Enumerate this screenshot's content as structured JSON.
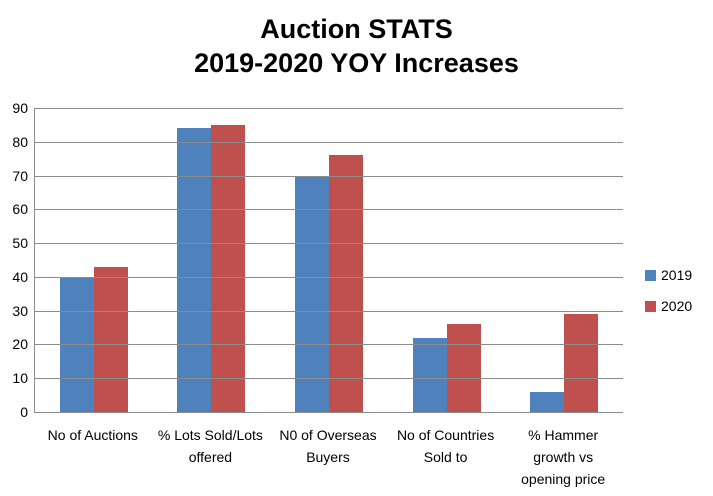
{
  "title": {
    "line1": "Auction STATS",
    "line2": "2019-2020 YOY Increases"
  },
  "chart_data": {
    "type": "bar",
    "title": "Auction STATS 2019-2020 YOY Increases",
    "categories": [
      "No of Auctions",
      "% Lots Sold/Lots offered",
      "N0 of Overseas Buyers",
      "No of Countries Sold to",
      "% Hammer growth vs opening price"
    ],
    "category_label_lines": [
      [
        "No of Auctions"
      ],
      [
        "% Lots Sold/Lots",
        "offered"
      ],
      [
        "N0 of Overseas",
        "Buyers"
      ],
      [
        "No of Countries",
        "Sold to"
      ],
      [
        "% Hammer",
        "growth vs",
        "opening price"
      ]
    ],
    "series": [
      {
        "name": "2019",
        "color": "#4F81BD",
        "values": [
          40,
          84,
          70,
          22,
          6
        ]
      },
      {
        "name": "2020",
        "color": "#C0504D",
        "values": [
          43,
          85,
          76,
          26,
          29
        ]
      }
    ],
    "xlabel": "",
    "ylabel": "",
    "ylim": [
      0,
      90
    ],
    "yticks": [
      0,
      10,
      20,
      30,
      40,
      50,
      60,
      70,
      80,
      90
    ],
    "grid": "horizontal",
    "gridline_color": "#8C8C8C",
    "axis_line_color": "#8C8C8C",
    "text_color": "#000000",
    "background_color": "#FFFFFF",
    "legend_position": "right"
  }
}
